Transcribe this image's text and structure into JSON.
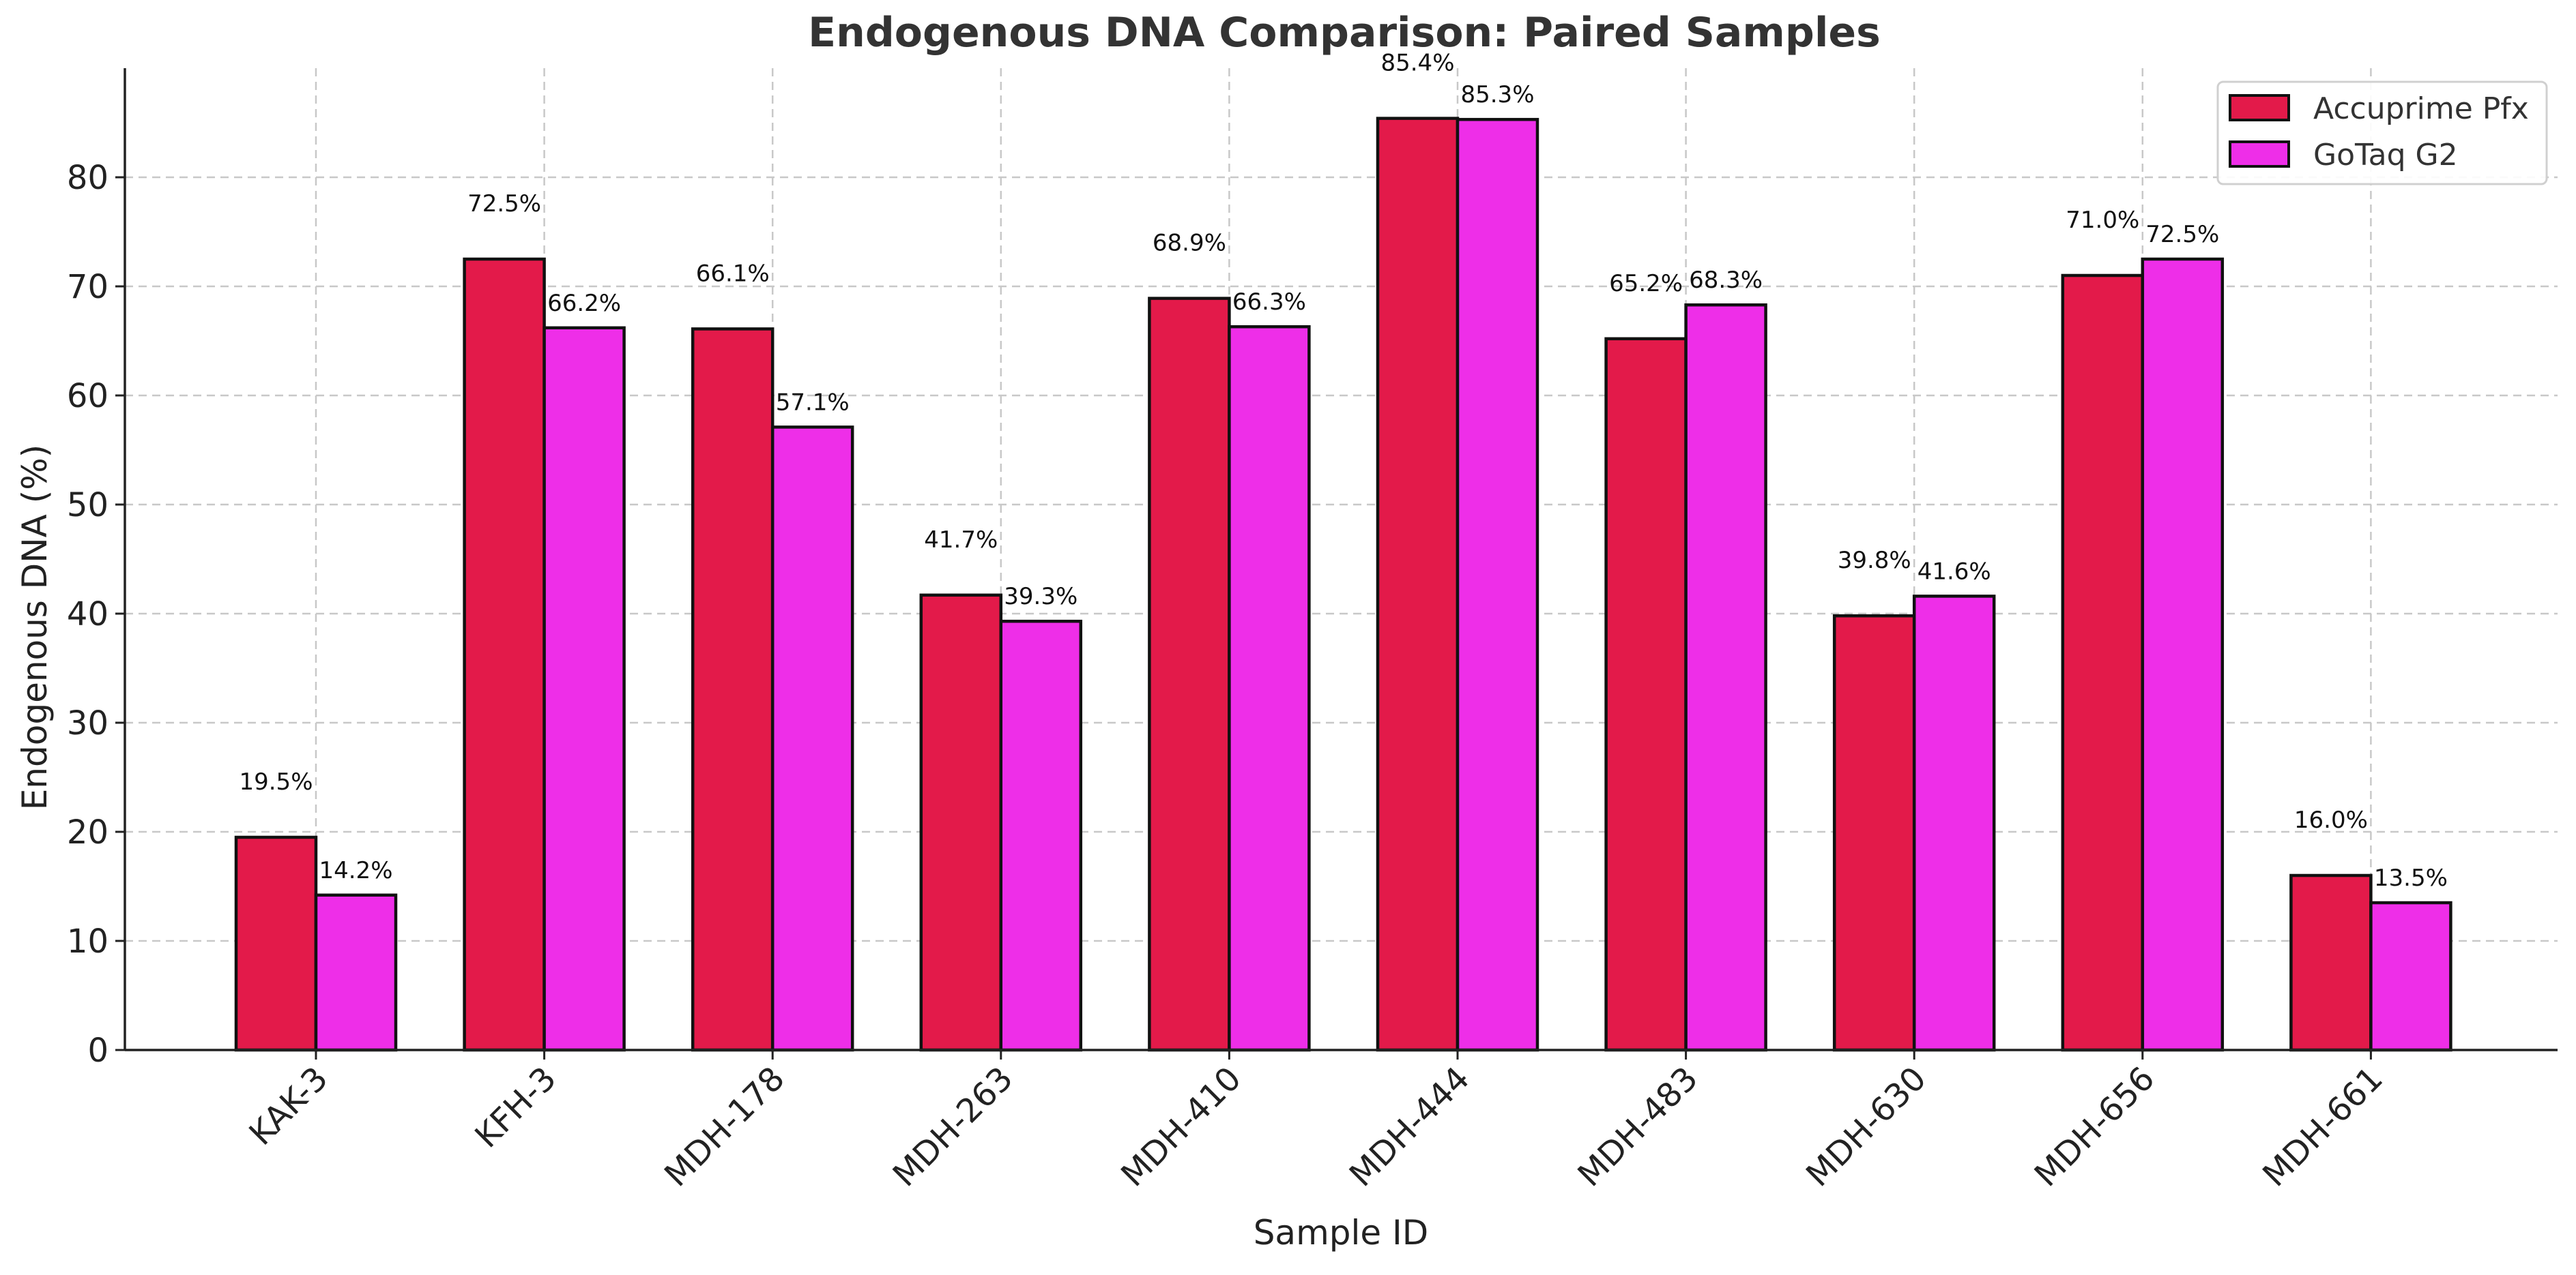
{
  "chart_data": {
    "type": "bar",
    "title": "Endogenous DNA Comparison: Paired Samples",
    "xlabel": "Sample ID",
    "ylabel": "Endogenous DNA (%)",
    "ylim": [
      0,
      90
    ],
    "yticks": [
      0,
      10,
      20,
      30,
      40,
      50,
      60,
      70,
      80
    ],
    "grid": true,
    "legend_position": "top-right",
    "categories": [
      "KAK-3",
      "KFH-3",
      "MDH-178",
      "MDH-263",
      "MDH-410",
      "MDH-444",
      "MDH-483",
      "MDH-630",
      "MDH-656",
      "MDH-661"
    ],
    "series": [
      {
        "name": "Accuprime Pfx",
        "color": "#e31a4a",
        "values": [
          19.5,
          72.5,
          66.1,
          41.7,
          68.9,
          85.4,
          65.2,
          39.8,
          71.0,
          16.0
        ],
        "labels": [
          "19.5%",
          "72.5%",
          "66.1%",
          "41.7%",
          "68.9%",
          "85.4%",
          "65.2%",
          "39.8%",
          "71.0%",
          "16.0%"
        ]
      },
      {
        "name": "GoTaq G2",
        "color": "#ee2ee8",
        "values": [
          14.2,
          66.2,
          57.1,
          39.3,
          66.3,
          85.3,
          68.3,
          41.6,
          72.5,
          13.5
        ],
        "labels": [
          "14.2%",
          "66.2%",
          "57.1%",
          "39.3%",
          "66.3%",
          "85.3%",
          "68.3%",
          "41.6%",
          "72.5%",
          "13.5%"
        ]
      }
    ]
  }
}
